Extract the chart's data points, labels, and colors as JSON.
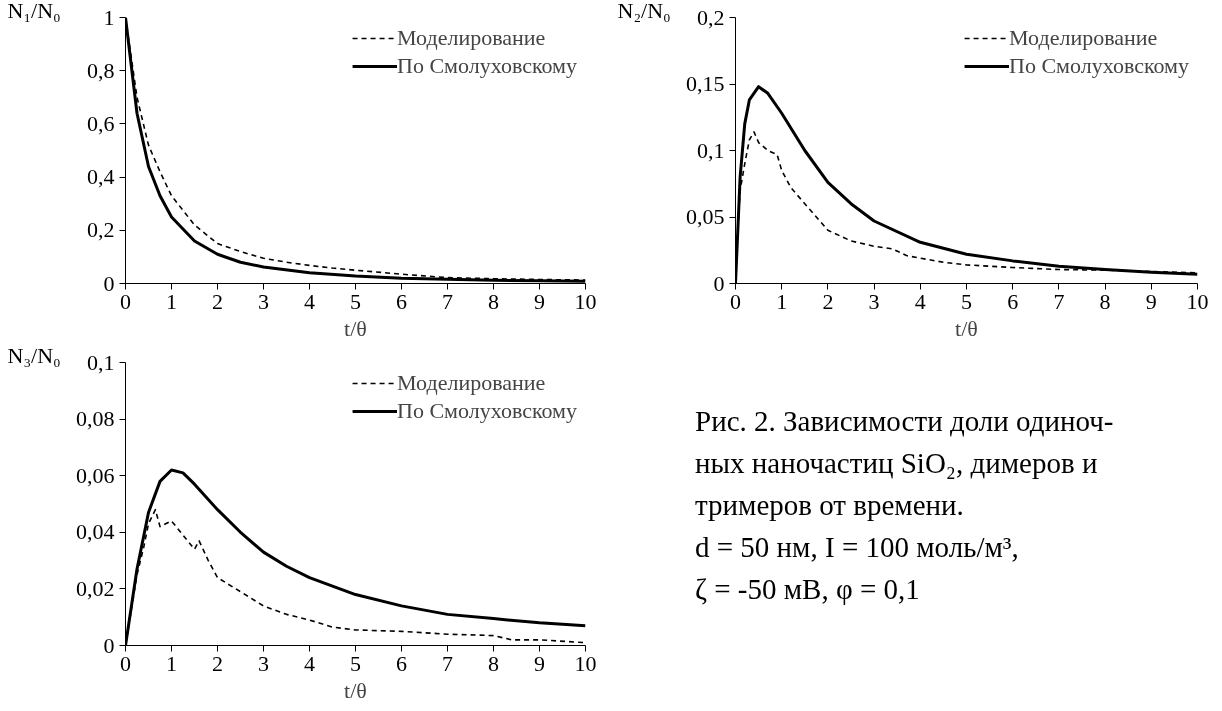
{
  "chart_data": [
    {
      "type": "line",
      "xlabel": "t/θ",
      "ylabel": "N₁/N₀",
      "xlim": [
        0,
        10
      ],
      "xticks": [
        0,
        1,
        2,
        3,
        4,
        5,
        6,
        7,
        8,
        9,
        10
      ],
      "ylim": [
        0,
        1
      ],
      "yticks": [
        0,
        {
          "value": 0.2,
          "label": "0,2"
        },
        {
          "value": 0.4,
          "label": "0,4"
        },
        {
          "value": 0.6,
          "label": "0,6"
        },
        {
          "value": 0.8,
          "label": "0,8"
        },
        1
      ],
      "grid": false,
      "legend": "top right",
      "marker": "none",
      "series": [
        {
          "name": "Моделирование",
          "color": "#000000",
          "line_style": "dashed",
          "x": [
            0,
            0.25,
            0.5,
            0.75,
            1,
            1.5,
            2,
            2.5,
            3,
            3.5,
            4,
            4.5,
            5,
            6,
            7,
            8,
            9,
            10
          ],
          "values": [
            1,
            0.7,
            0.52,
            0.42,
            0.33,
            0.22,
            0.15,
            0.12,
            0.095,
            0.08,
            0.068,
            0.058,
            0.05,
            0.035,
            0.022,
            0.018,
            0.015,
            0.013
          ]
        },
        {
          "name": "По Смолуховскому",
          "color": "#000000",
          "line_style": "solid",
          "x": [
            0,
            0.25,
            0.5,
            0.75,
            1,
            1.5,
            2,
            2.5,
            3,
            4,
            5,
            6,
            7,
            8,
            9,
            10
          ],
          "values": [
            1,
            0.64,
            0.44,
            0.33,
            0.25,
            0.16,
            0.11,
            0.08,
            0.062,
            0.04,
            0.028,
            0.02,
            0.016,
            0.012,
            0.01,
            0.008
          ]
        }
      ]
    },
    {
      "type": "line",
      "xlabel": "t/θ",
      "ylabel": "N₂/N₀",
      "xlim": [
        0,
        10
      ],
      "xticks": [
        0,
        1,
        2,
        3,
        4,
        5,
        6,
        7,
        8,
        9,
        10
      ],
      "ylim": [
        0,
        0.2
      ],
      "yticks": [
        0,
        {
          "value": 0.05,
          "label": "0,05"
        },
        {
          "value": 0.1,
          "label": "0,1"
        },
        {
          "value": 0.15,
          "label": "0,15"
        },
        {
          "value": 0.2,
          "label": "0,2"
        }
      ],
      "grid": false,
      "legend": "top right",
      "marker": "none",
      "series": [
        {
          "name": "Моделирование",
          "color": "#000000",
          "line_style": "dashed",
          "x": [
            0,
            0.05,
            0.1,
            0.2,
            0.3,
            0.4,
            0.5,
            0.7,
            0.9,
            1,
            1.2,
            1.5,
            1.8,
            2,
            2.5,
            3,
            3.4,
            3.7,
            4,
            4.5,
            5,
            6,
            7,
            8,
            9,
            10
          ],
          "values": [
            0,
            0.04,
            0.07,
            0.09,
            0.108,
            0.114,
            0.106,
            0.1,
            0.097,
            0.085,
            0.072,
            0.06,
            0.048,
            0.04,
            0.032,
            0.028,
            0.026,
            0.021,
            0.019,
            0.016,
            0.014,
            0.012,
            0.0105,
            0.01,
            0.009,
            0.008
          ]
        },
        {
          "name": "По Смолуховскому",
          "color": "#000000",
          "line_style": "solid",
          "x": [
            0,
            0.1,
            0.2,
            0.3,
            0.5,
            0.7,
            1,
            1.5,
            2,
            2.5,
            3,
            4,
            5,
            6,
            7,
            8,
            9,
            10
          ],
          "values": [
            0,
            0.08,
            0.12,
            0.138,
            0.148,
            0.143,
            0.128,
            0.1,
            0.076,
            0.06,
            0.047,
            0.031,
            0.022,
            0.017,
            0.013,
            0.0105,
            0.0085,
            0.007
          ]
        }
      ]
    },
    {
      "type": "line",
      "xlabel": "t/θ",
      "ylabel": "N₃/N₀",
      "xlim": [
        0,
        10
      ],
      "xticks": [
        0,
        1,
        2,
        3,
        4,
        5,
        6,
        7,
        8,
        9,
        10
      ],
      "ylim": [
        0,
        0.1
      ],
      "yticks": [
        0,
        {
          "value": 0.02,
          "label": "0,02"
        },
        {
          "value": 0.04,
          "label": "0,04"
        },
        {
          "value": 0.06,
          "label": "0,06"
        },
        {
          "value": 0.08,
          "label": "0,08"
        },
        {
          "value": 0.1,
          "label": "0,1"
        }
      ],
      "grid": false,
      "legend": "top right",
      "marker": "none",
      "series": [
        {
          "name": "Моделирование",
          "color": "#000000",
          "line_style": "dashed",
          "x": [
            0,
            0.25,
            0.4,
            0.5,
            0.65,
            0.75,
            1,
            1.25,
            1.5,
            1.6,
            1.8,
            2,
            2.5,
            3,
            3.5,
            4,
            4.5,
            5,
            6,
            7,
            8,
            8.4,
            9,
            10
          ],
          "values": [
            0,
            0.025,
            0.035,
            0.043,
            0.048,
            0.042,
            0.044,
            0.039,
            0.034,
            0.037,
            0.03,
            0.024,
            0.019,
            0.014,
            0.011,
            0.009,
            0.0065,
            0.0055,
            0.005,
            0.004,
            0.0035,
            0.002,
            0.002,
            0.001
          ]
        },
        {
          "name": "По Смолуховскому",
          "color": "#000000",
          "line_style": "solid",
          "x": [
            0,
            0.25,
            0.5,
            0.75,
            1,
            1.25,
            1.5,
            2,
            2.5,
            3,
            3.5,
            4,
            5,
            6,
            7,
            8,
            9,
            10
          ],
          "values": [
            0,
            0.027,
            0.047,
            0.058,
            0.062,
            0.061,
            0.057,
            0.048,
            0.04,
            0.033,
            0.028,
            0.024,
            0.018,
            0.014,
            0.011,
            0.0095,
            0.008,
            0.007
          ]
        }
      ]
    },
    {
      "type": "other",
      "annotations": [
        "Рис. 2. Зависимости доли одиноч-",
        "ных наночастиц SiO₂, димеров и",
        "тримеров от времени.",
        "d = 50 нм, I = 100 моль/м³,",
        "ζ = -50 мВ, φ = 0,1"
      ]
    }
  ]
}
